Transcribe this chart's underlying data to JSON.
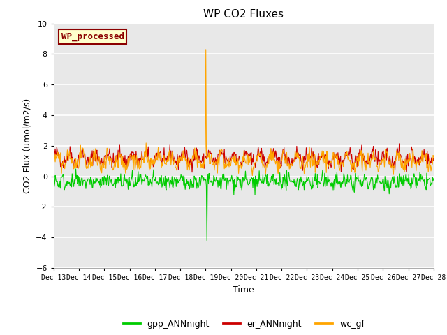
{
  "title": "WP CO2 Fluxes",
  "xlabel": "Time",
  "ylabel": "CO2 Flux (umol/m2/s)",
  "ylim": [
    -6,
    10
  ],
  "yticks": [
    -6,
    -4,
    -2,
    0,
    2,
    4,
    6,
    8,
    10
  ],
  "xlim_days": [
    13,
    28
  ],
  "xtick_days": [
    13,
    14,
    15,
    16,
    17,
    18,
    19,
    20,
    21,
    22,
    23,
    24,
    25,
    26,
    27,
    28
  ],
  "xtick_labels": [
    "Dec 13",
    "Dec 14",
    "Dec 15",
    "Dec 16",
    "Dec 17",
    "Dec 18",
    "Dec 19",
    "Dec 20",
    "Dec 21",
    "Dec 22",
    "Dec 23",
    "Dec 24",
    "Dec 25",
    "Dec 26",
    "Dec 27",
    "Dec 28"
  ],
  "colors": {
    "gpp": "#00cc00",
    "er": "#cc0000",
    "wc": "#ffa500",
    "background": "#e8e8e8",
    "grid": "#ffffff",
    "wp_box_bg": "#ffffcc",
    "wp_box_edge": "#8b0000",
    "wp_text": "#8b0000"
  },
  "legend_labels": [
    "gpp_ANNnight",
    "er_ANNnight",
    "wc_gf"
  ],
  "wp_label": "WP_processed",
  "n_points": 720,
  "spike_day_wc": 19.0,
  "spike_val_wc": 8.3,
  "spike_day_gpp": 19.05,
  "spike_val_gpp": -4.2
}
